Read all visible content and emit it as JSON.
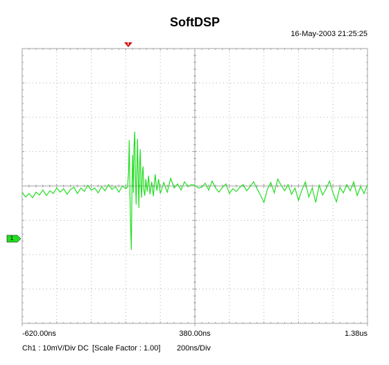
{
  "chart_data": {
    "type": "line",
    "title": "SoftDSP",
    "timestamp": "16-May-2003 21:25:25",
    "trigger_label": "T",
    "channel_label": "1",
    "footer": [
      "Ch1 : 10mV/Div",
      "DC",
      "[Scale Factor : 1.00]",
      "200ns/Div"
    ],
    "xlim": [
      -620,
      1380
    ],
    "ylim": [
      -40,
      40
    ],
    "xticks": [
      {
        "value": -620,
        "label": "-620.00ns"
      },
      {
        "value": 380,
        "label": "380.00ns"
      },
      {
        "value": 1380,
        "label": "1.38us"
      }
    ],
    "grid": true,
    "x": [
      -620,
      -600,
      -580,
      -560,
      -540,
      -520,
      -500,
      -480,
      -460,
      -440,
      -420,
      -400,
      -380,
      -360,
      -340,
      -320,
      -300,
      -280,
      -260,
      -240,
      -220,
      -200,
      -180,
      -160,
      -140,
      -120,
      -100,
      -80,
      -60,
      -40,
      -20,
      -10,
      -4,
      0,
      4,
      8,
      12,
      16,
      20,
      24,
      28,
      32,
      36,
      40,
      44,
      48,
      52,
      56,
      60,
      64,
      68,
      72,
      76,
      80,
      84,
      90,
      96,
      104,
      112,
      120,
      130,
      140,
      150,
      160,
      170,
      180,
      200,
      220,
      240,
      260,
      280,
      300,
      320,
      340,
      360,
      380,
      400,
      420,
      440,
      460,
      480,
      500,
      520,
      540,
      560,
      580,
      600,
      620,
      640,
      660,
      680,
      700,
      720,
      740,
      760,
      780,
      800,
      820,
      840,
      860,
      880,
      900,
      920,
      940,
      960,
      980,
      1000,
      1020,
      1040,
      1060,
      1080,
      1100,
      1120,
      1140,
      1160,
      1180,
      1200,
      1220,
      1240,
      1260,
      1280,
      1300,
      1320,
      1340,
      1360,
      1380
    ],
    "series": [
      {
        "color": "#22dd22",
        "values": [
          -2.0,
          -3.2,
          -2.2,
          -3.4,
          -1.8,
          -2.6,
          -1.2,
          -2.8,
          -1.4,
          -2.2,
          -0.6,
          -1.8,
          -0.8,
          -2.4,
          -1.0,
          -0.4,
          -2.2,
          -0.6,
          -1.6,
          0.2,
          -1.2,
          -0.6,
          -2.0,
          -0.2,
          -1.4,
          0.4,
          -1.0,
          -0.2,
          -1.8,
          0.0,
          -0.8,
          -0.4,
          4.0,
          13.3,
          -2.0,
          -12.0,
          -18.6,
          0.0,
          9.0,
          -2.0,
          12.0,
          15.8,
          3.0,
          -5.4,
          4.0,
          13.7,
          2.0,
          -6.4,
          6.0,
          10.7,
          0.0,
          -3.4,
          4.0,
          5.7,
          -1.0,
          -2.8,
          2.0,
          -1.6,
          3.0,
          -2.4,
          1.2,
          -3.0,
          3.4,
          -1.4,
          2.0,
          -2.2,
          1.0,
          -1.8,
          2.2,
          -0.6,
          0.6,
          -1.2,
          1.2,
          -0.2,
          0.4,
          0.2,
          -0.6,
          -0.4,
          0.8,
          -1.2,
          1.4,
          -0.6,
          -1.8,
          -0.4,
          0.6,
          -2.2,
          -0.8,
          -1.6,
          -0.4,
          0.4,
          -1.4,
          -0.2,
          1.2,
          -0.8,
          -2.6,
          -4.8,
          -1.0,
          1.0,
          -2.0,
          2.0,
          0.2,
          -1.4,
          0.4,
          -2.4,
          -0.6,
          -4.2,
          -1.2,
          1.2,
          -3.2,
          -0.6,
          -4.8,
          0.2,
          -2.6,
          -0.8,
          1.4,
          -2.0,
          -4.6,
          -0.4,
          -2.0,
          0.4,
          -1.4,
          1.2,
          -2.8,
          -0.2,
          -2.2,
          0.4
        ]
      }
    ]
  }
}
